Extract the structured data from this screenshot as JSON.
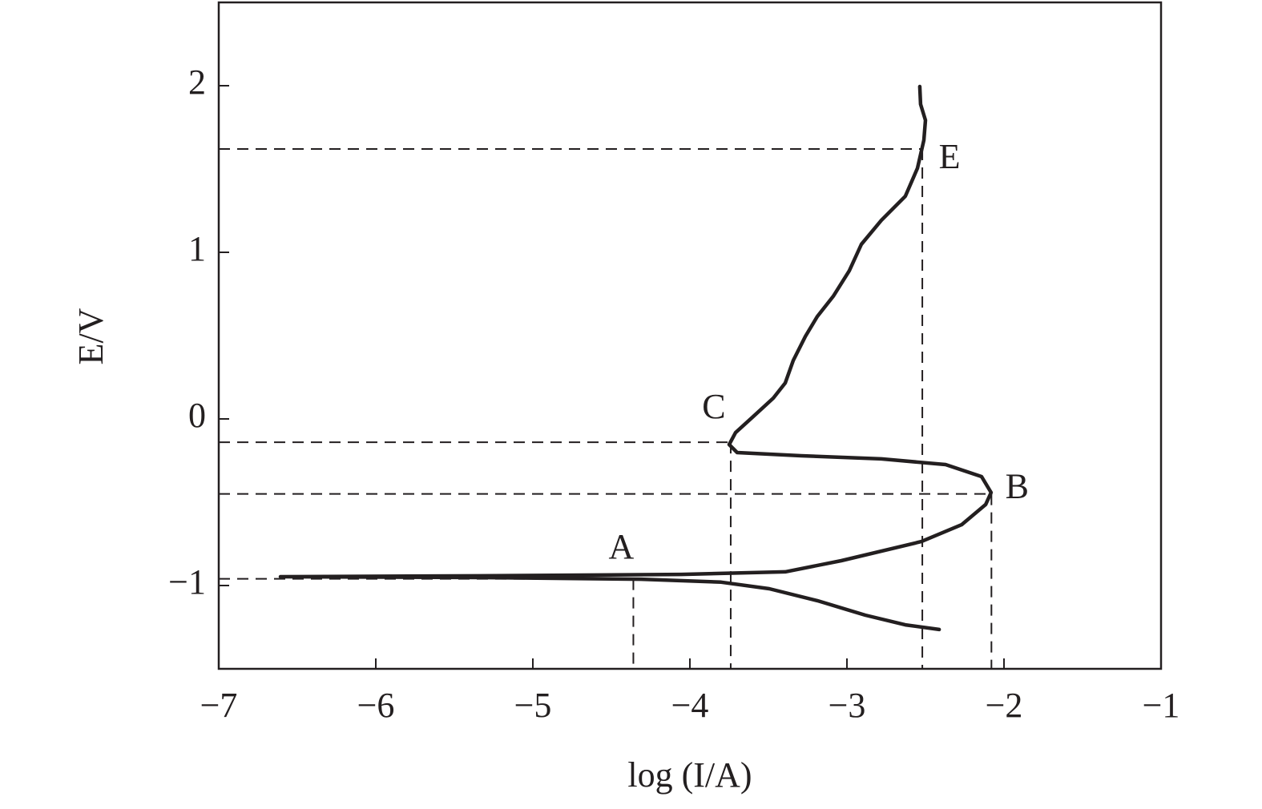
{
  "chart_data": {
    "type": "line",
    "xlabel": "log (I/A)",
    "ylabel": "E/V",
    "xlim": [
      -7,
      -1
    ],
    "ylim": [
      -1.5,
      2.5
    ],
    "xticks": [
      {
        "value": -7,
        "label": "−7"
      },
      {
        "value": -6,
        "label": "−6"
      },
      {
        "value": -5,
        "label": "−5"
      },
      {
        "value": -4,
        "label": "−4"
      },
      {
        "value": -3,
        "label": "−3"
      },
      {
        "value": -2,
        "label": "−2"
      },
      {
        "value": -1,
        "label": "−1"
      }
    ],
    "yticks": [
      {
        "value": -1,
        "label": "−1"
      },
      0,
      1,
      2
    ],
    "series": [
      {
        "color": "#231f20",
        "x": [
          -2.413,
          -2.628,
          -2.883,
          -3.189,
          -3.495,
          -3.801,
          -4.311,
          -5.332,
          -6.607,
          -5.332,
          -4.056,
          -3.393,
          -3.036,
          -2.526,
          -2.27,
          -2.117,
          -2.082,
          -2.143,
          -2.372,
          -2.781,
          -3.291,
          -3.699,
          -3.75,
          -3.709,
          -3.597,
          -3.469,
          -3.393,
          -3.342,
          -3.265,
          -3.189,
          -3.087,
          -2.985,
          -2.908,
          -2.781,
          -2.628,
          -2.551,
          -2.51,
          -2.5,
          -2.531,
          -2.536
        ],
        "values": [
          -1.264,
          -1.236,
          -1.178,
          -1.091,
          -1.019,
          -0.98,
          -0.962,
          -0.952,
          -0.947,
          -0.942,
          -0.933,
          -0.918,
          -0.851,
          -0.736,
          -0.635,
          -0.514,
          -0.442,
          -0.346,
          -0.274,
          -0.24,
          -0.221,
          -0.202,
          -0.154,
          -0.082,
          0.014,
          0.125,
          0.216,
          0.351,
          0.495,
          0.615,
          0.736,
          0.889,
          1.048,
          1.192,
          1.337,
          1.505,
          1.673,
          1.793,
          1.889,
          1.995
        ]
      }
    ],
    "points": [
      {
        "label": "A",
        "x": -4.36,
        "y": -0.96
      },
      {
        "label": "C",
        "x": -3.74,
        "y": -0.14
      },
      {
        "label": "B",
        "x": -2.08,
        "y": -0.45
      },
      {
        "label": "E",
        "x": -2.52,
        "y": 1.62
      }
    ]
  }
}
